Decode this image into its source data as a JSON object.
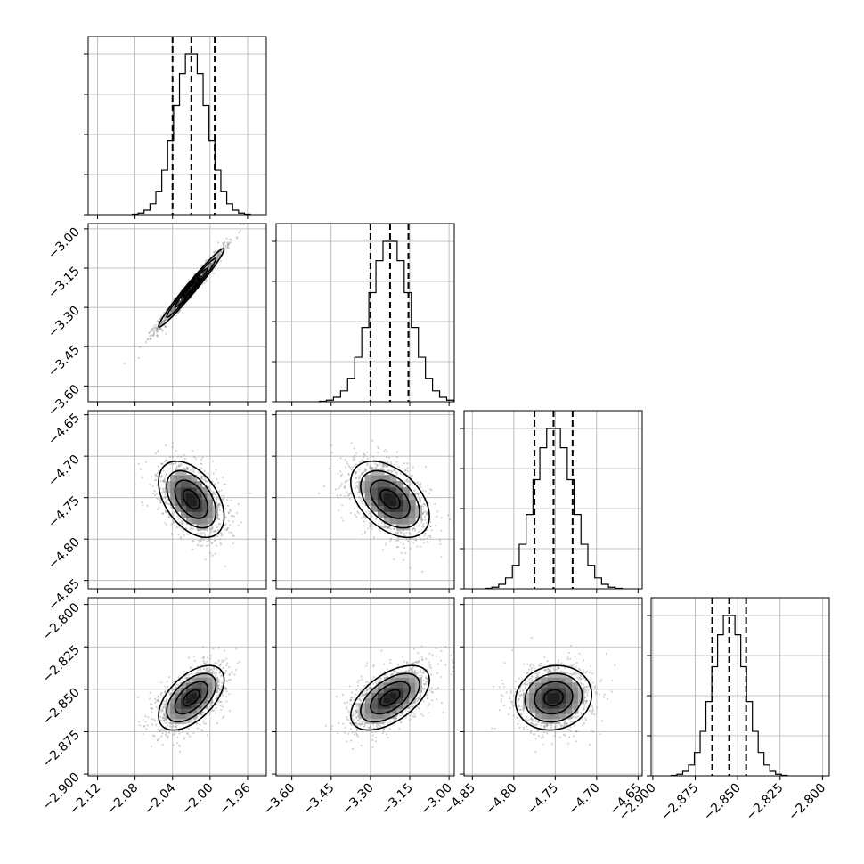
{
  "chart_data": {
    "type": "corner",
    "title": "",
    "parameters": [
      {
        "mean": -2.02,
        "sd": 0.0175,
        "range": [
          -2.13,
          -1.94
        ],
        "ticks": [
          -2.12,
          -2.08,
          -2.04,
          -2.0,
          -1.96
        ],
        "tick_labels": [
          "−2.12",
          "−2.08",
          "−2.04",
          "−2.00",
          "−1.96"
        ],
        "quantiles": [
          -2.04,
          -2.02,
          -1.995
        ]
      },
      {
        "mean": -3.225,
        "sd": 0.075,
        "range": [
          -3.66,
          -2.98
        ],
        "ticks": [
          -3.6,
          -3.45,
          -3.3,
          -3.15,
          -3.0
        ],
        "tick_labels": [
          "−3.60",
          "−3.45",
          "−3.30",
          "−3.15",
          "−3.00"
        ],
        "quantiles": [
          -3.3,
          -3.225,
          -3.155
        ]
      },
      {
        "mean": -4.752,
        "sd": 0.023,
        "range": [
          -4.86,
          -4.645
        ],
        "ticks": [
          -4.85,
          -4.8,
          -4.75,
          -4.7,
          -4.65
        ],
        "tick_labels": [
          "−4.85",
          "−4.80",
          "−4.75",
          "−4.70",
          "−4.65"
        ],
        "quantiles": [
          -4.775,
          -4.752,
          -4.729
        ]
      },
      {
        "mean": -2.855,
        "sd": 0.0095,
        "range": [
          -2.901,
          -2.796
        ],
        "ticks": [
          -2.9,
          -2.875,
          -2.85,
          -2.825,
          -2.8
        ],
        "tick_labels": [
          "−2.900",
          "−2.875",
          "−2.850",
          "−2.825",
          "−2.800"
        ],
        "quantiles": [
          -2.865,
          -2.855,
          -2.845
        ]
      }
    ],
    "correlations": {
      "1-0": 0.98,
      "2-0": -0.45,
      "2-1": -0.45,
      "3-0": 0.55,
      "3-1": 0.55,
      "3-2": 0.1
    },
    "histogram_bins": 20,
    "contour_levels_sigma": [
      0.5,
      1.0,
      1.5,
      2.0
    ],
    "grid": true,
    "colors": {
      "line": "#000000",
      "scatter": "#808080",
      "grid": "#b0b0b0"
    }
  }
}
